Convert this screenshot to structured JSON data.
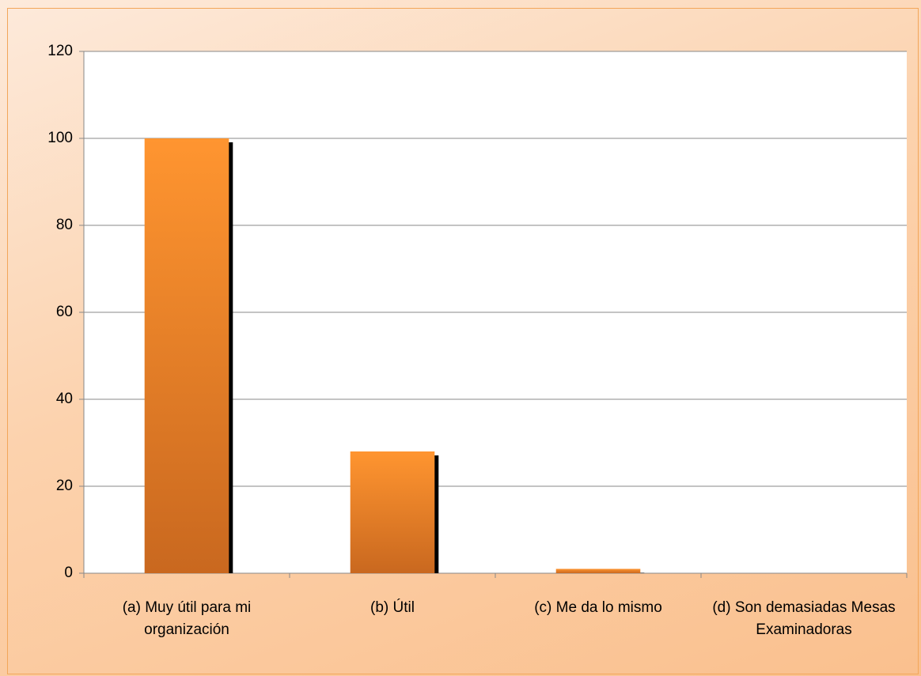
{
  "chart_data": {
    "type": "bar",
    "categories": [
      "(a) Muy útil para mi organización",
      "(b) Útil",
      "(c) Me da lo mismo",
      "(d) Son demasiadas Mesas Examinadoras"
    ],
    "values": [
      100,
      28,
      1,
      0
    ],
    "color": "#f7902c",
    "ylim": [
      0,
      120
    ],
    "yticks": [
      0,
      20,
      40,
      60,
      80,
      100,
      120
    ],
    "grid": true
  }
}
